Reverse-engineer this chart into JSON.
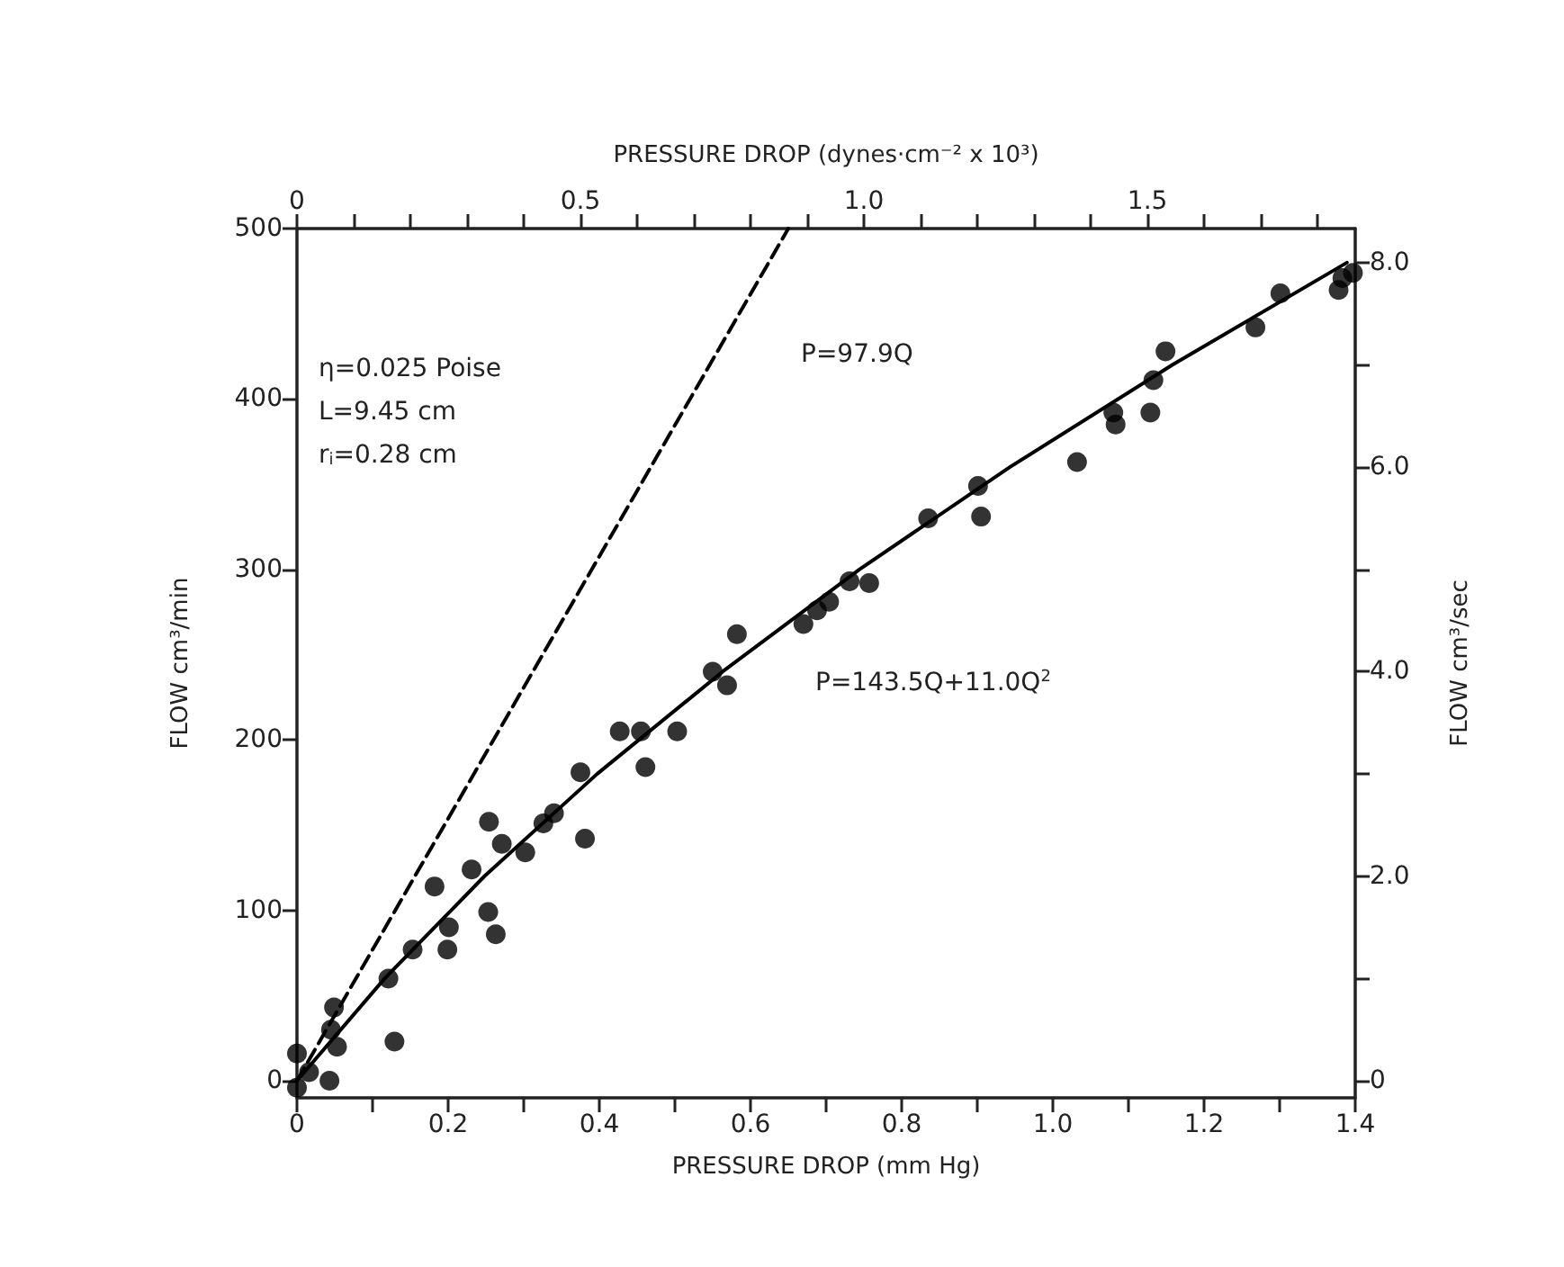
{
  "chart_data": {
    "type": "scatter",
    "xlabel": "PRESSURE DROP (mm Hg)",
    "x2label": "PRESSURE DROP (dynes·cm⁻² x 10³)",
    "ylabel": "FLOW cm³/min",
    "y2label": "FLOW cm³/sec",
    "xlim": [
      0,
      1.4
    ],
    "xticks": [
      0,
      {
        "value": 0.1,
        "label": null
      },
      0.2,
      {
        "value": 0.3,
        "label": null
      },
      0.4,
      {
        "value": 0.5,
        "label": null
      },
      0.6,
      {
        "value": 0.7,
        "label": null
      },
      0.8,
      {
        "value": 0.9,
        "label": null
      },
      {
        "value": 1,
        "label": "1.0"
      },
      {
        "value": 1.1,
        "label": null
      },
      1.2,
      {
        "value": 1.3,
        "label": null
      },
      1.4
    ],
    "x2lim": [
      0,
      1.8665
    ],
    "x2ticks": [
      0,
      {
        "value": 0.1,
        "label": null
      },
      {
        "value": 0.2,
        "label": null
      },
      {
        "value": 0.3,
        "label": null
      },
      {
        "value": 0.4,
        "label": null
      },
      0.5,
      {
        "value": 0.6,
        "label": null
      },
      {
        "value": 0.7,
        "label": null
      },
      {
        "value": 0.8,
        "label": null
      },
      {
        "value": 0.9,
        "label": null
      },
      {
        "value": 1,
        "label": "1.0"
      },
      {
        "value": 1.1,
        "label": null
      },
      {
        "value": 1.2,
        "label": null
      },
      {
        "value": 1.3,
        "label": null
      },
      {
        "value": 1.4,
        "label": null
      },
      1.5,
      {
        "value": 1.6,
        "label": null
      },
      {
        "value": 1.7,
        "label": null
      },
      {
        "value": 1.8,
        "label": null
      }
    ],
    "ylim": [
      -10,
      500
    ],
    "yticks": [
      0,
      100,
      200,
      300,
      400,
      500
    ],
    "y2lim": [
      -0.1667,
      8.333
    ],
    "y2ticks": [
      0,
      {
        "value": 1,
        "label": null
      },
      {
        "value": 2,
        "label": "2.0"
      },
      {
        "value": 3,
        "label": null
      },
      {
        "value": 4,
        "label": "4.0"
      },
      {
        "value": 5,
        "label": null
      },
      {
        "value": 6,
        "label": "6.0"
      },
      {
        "value": 7,
        "label": null
      },
      {
        "value": 8,
        "label": "8.0"
      }
    ],
    "grid": false,
    "series": [
      {
        "color": "#000000",
        "marker": "circle",
        "x": [
          0,
          0,
          0.016,
          0.043,
          0.049,
          0.045,
          0.053,
          0.129,
          0.121,
          0.153,
          0.182,
          0.201,
          0.199,
          0.231,
          0.253,
          0.263,
          0.254,
          0.271,
          0.302,
          0.326,
          0.34,
          0.375,
          0.381,
          0.427,
          0.455,
          0.461,
          0.503,
          0.55,
          0.569,
          0.582,
          0.67,
          0.688,
          0.704,
          0.731,
          0.757,
          0.835,
          0.901,
          0.905,
          1.032,
          1.08,
          1.083,
          1.129,
          1.133,
          1.149,
          1.268,
          1.301,
          1.378,
          1.383,
          1.397
        ],
        "values": [
          16,
          -4,
          5,
          0,
          43,
          30,
          20,
          23,
          60,
          77,
          114,
          90,
          77,
          124,
          99,
          86,
          152,
          139,
          134,
          151,
          157,
          181,
          142,
          205,
          205,
          184,
          205,
          240,
          232,
          262,
          268,
          276,
          281,
          293,
          292,
          330,
          349,
          331,
          363,
          392,
          385,
          392,
          411,
          428,
          442,
          462,
          464,
          471,
          474
        ]
      },
      {
        "type": "line",
        "color": "#000000",
        "marker": "none",
        "line_style": "solid",
        "x": [
          0,
          0.116,
          0.248,
          0.397,
          0.563,
          0.744,
          0.943,
          1.158,
          1.389
        ],
        "values": [
          0,
          60,
          120,
          180,
          240,
          300,
          360,
          420,
          480
        ]
      },
      {
        "type": "line",
        "color": "#000000",
        "marker": "none",
        "line_style": "dashed",
        "x": [
          0,
          0.65
        ],
        "values": [
          0,
          500
        ]
      }
    ],
    "annotations": [
      "η=0.025 Poise",
      "L=9.45 cm",
      "r$_{i}$=0.28 cm",
      "P=97.9Q",
      "P=143.5Q+11.0Q$^{2}$"
    ]
  }
}
